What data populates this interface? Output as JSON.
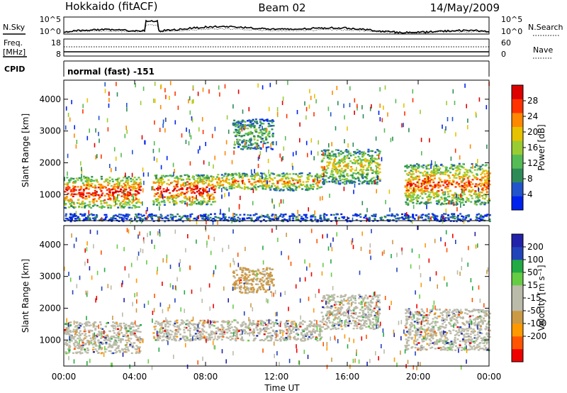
{
  "header": {
    "radar": "Hokkaido (fitACF)",
    "beam": "Beam 02",
    "date": "14/May/2009"
  },
  "nsky_panel": {
    "left_label": "N.Sky",
    "left_ticks": [
      "10^5",
      "10^0"
    ],
    "right_ticks": [
      "10^5",
      "10^0"
    ],
    "right_label": "N.Search"
  },
  "freq_panel": {
    "label_line1": "Freq.",
    "label_line2": "[MHz]",
    "left_ticks": [
      "18",
      "8"
    ],
    "right_ticks": [
      "60",
      "0"
    ],
    "right_label": "Nave"
  },
  "cpid_panel": {
    "label": "CPID",
    "mode": "normal (fast) -151"
  },
  "colors": {
    "power": [
      "#0022ee",
      "#2255cc",
      "#2e8b57",
      "#55bb55",
      "#99cc33",
      "#e6c200",
      "#ff8800",
      "#ff3300",
      "#dd0000"
    ],
    "velocity": [
      "#ee0000",
      "#ff5500",
      "#ff9900",
      "#cc9944",
      "#bbbbaa",
      "#bbbbaa",
      "#66cc44",
      "#22aa44",
      "#2244bb",
      "#2222aa"
    ]
  },
  "chart_data": [
    {
      "type": "heatmap",
      "name": "power",
      "ylabel": "Slant Range [km]",
      "yticks": [
        "1000",
        "2000",
        "3000",
        "4000"
      ],
      "ytick_values": [
        1000,
        2000,
        3000,
        4000
      ],
      "ylim": [
        180,
        4600
      ],
      "xlim": [
        0,
        24
      ],
      "colorbar_label": "Power [dB]",
      "colorbar_ticks": [
        "4",
        "8",
        "12",
        "16",
        "20",
        "24",
        "28"
      ],
      "colorbar_range": [
        0,
        32
      ],
      "regions": [
        {
          "x": [
            0,
            4.3
          ],
          "y": [
            600,
            1600
          ],
          "level": 8
        },
        {
          "x": [
            5.0,
            8.5
          ],
          "y": [
            700,
            1650
          ],
          "level": 8
        },
        {
          "x": [
            8.5,
            14.5
          ],
          "y": [
            1150,
            1700
          ],
          "level": 6
        },
        {
          "x": [
            14.5,
            17.8
          ],
          "y": [
            1350,
            2450
          ],
          "level": 5
        },
        {
          "x": [
            19.2,
            24
          ],
          "y": [
            700,
            2000
          ],
          "level": 7
        },
        {
          "x": [
            9.5,
            11.8
          ],
          "y": [
            2450,
            3400
          ],
          "level": 3
        },
        {
          "x": [
            0,
            24
          ],
          "y": [
            180,
            420
          ],
          "level": 1
        }
      ]
    },
    {
      "type": "heatmap",
      "name": "velocity",
      "ylabel": "Slant Range [km]",
      "yticks": [
        "1000",
        "2000",
        "3000",
        "4000"
      ],
      "ytick_values": [
        1000,
        2000,
        3000,
        4000
      ],
      "ylim": [
        180,
        4600
      ],
      "xlim": [
        0,
        24
      ],
      "xlabel": "Time UT",
      "xticks": [
        "00:00",
        "04:00",
        "08:00",
        "12:00",
        "16:00",
        "20:00",
        "00:00"
      ],
      "xtick_values": [
        0,
        4,
        8,
        12,
        16,
        20,
        24
      ],
      "colorbar_label": "Velocity [m s⁻¹]",
      "colorbar_ticks": [
        "200",
        "100",
        "50",
        "15",
        "-15",
        "-50",
        "-100",
        "-200"
      ],
      "colorbar_values": [
        200,
        100,
        50,
        15,
        -15,
        -50,
        -100,
        -200
      ],
      "regions": [
        {
          "x": [
            0,
            4.3
          ],
          "y": [
            600,
            1600
          ],
          "level": 4
        },
        {
          "x": [
            5.0,
            14.5
          ],
          "y": [
            1000,
            1650
          ],
          "level": 4
        },
        {
          "x": [
            14.5,
            17.8
          ],
          "y": [
            1350,
            2450
          ],
          "level": 4
        },
        {
          "x": [
            19.2,
            24
          ],
          "y": [
            700,
            2000
          ],
          "level": 4
        },
        {
          "x": [
            9.5,
            11.8
          ],
          "y": [
            2500,
            3300
          ],
          "level": 3
        }
      ]
    }
  ]
}
